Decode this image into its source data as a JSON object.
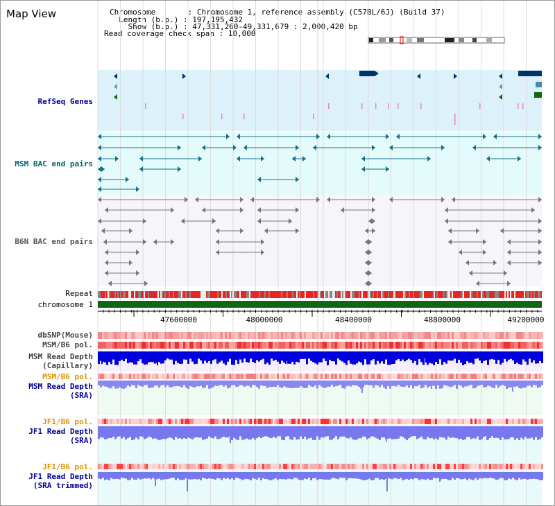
{
  "page": {
    "title": "Map View"
  },
  "info": {
    "chromosome": "Chromosome       : Chromosome 1, reference assembly (C57BL/6J) (Build 37)",
    "length": "  Length (b.p.) : 197,195,432",
    "show": "    Show (b.p.) : 47,331,260-49,331,679 : 2,000,420 bp",
    "span": "Read coverage check span : 10,000"
  },
  "labels": {
    "refseq": "RefSeq Genes",
    "msm_bac": "MSM BAC end pairs",
    "b6n_bac": "B6N BAC end pairs",
    "repeat": "Repeat",
    "chromosome": "chromosome 1",
    "dbsnp": "dbSNP(Mouse)",
    "msm_b6_pol_1": "MSM/B6 pol.",
    "msm_read_depth_cap_1": "MSM Read Depth",
    "msm_read_depth_cap_2": "(Capillary)",
    "msm_b6_pol_2": "MSM/B6 pol.",
    "msm_read_depth_sra_1": "MSM Read Depth",
    "msm_read_depth_sra_2": "(SRA)",
    "jf1_b6_pol_1": "JF1/B6 pol.",
    "jf1_read_depth_1": "JF1 Read Depth",
    "jf1_read_depth_2": "(SRA)",
    "jf1_b6_pol_2": "JF1/B6 pol.",
    "jf1_read_depth_trim_1": "JF1 Read Depth",
    "jf1_read_depth_trim_2": "(SRA trimmed)"
  },
  "axis": {
    "ticks": [
      "47600000",
      "48000000",
      "48400000",
      "48800000",
      "49200000"
    ]
  },
  "colors": {
    "refseq_bg": "#ddf1fb",
    "msm_bg": "#e4fbfb",
    "b6n_bg": "#f5f5fa",
    "chromosome": "#116611",
    "msm_blue": "#0000dd",
    "msm_light_blue": "#8888ee",
    "jf1_blue": "#7777ee",
    "orange": "#e09000",
    "dark_blue": "#000099",
    "teal": "#006677"
  }
}
